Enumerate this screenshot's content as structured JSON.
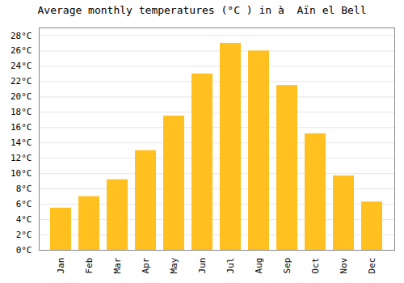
{
  "chart_data": {
    "type": "bar",
    "title": "Average monthly temperatures (°C ) in à  Aïn el Bell",
    "categories": [
      "Jan",
      "Feb",
      "Mar",
      "Apr",
      "May",
      "Jun",
      "Jul",
      "Aug",
      "Sep",
      "Oct",
      "Nov",
      "Dec"
    ],
    "values": [
      5.5,
      7.0,
      9.2,
      13.0,
      17.5,
      23.0,
      27.0,
      26.0,
      21.5,
      15.2,
      9.7,
      6.3
    ],
    "color": "#FFC020",
    "ylim": [
      0,
      29
    ],
    "yticks": [
      {
        "value": 0,
        "label": "0°C"
      },
      {
        "value": 2,
        "label": "2°C"
      },
      {
        "value": 4,
        "label": "4°C"
      },
      {
        "value": 6,
        "label": "6°C"
      },
      {
        "value": 8,
        "label": "8°C"
      },
      {
        "value": 10,
        "label": "10°C"
      },
      {
        "value": 12,
        "label": "12°C"
      },
      {
        "value": 14,
        "label": "14°C"
      },
      {
        "value": 16,
        "label": "16°C"
      },
      {
        "value": 18,
        "label": "18°C"
      },
      {
        "value": 20,
        "label": "20°C"
      },
      {
        "value": 22,
        "label": "22°C"
      },
      {
        "value": 24,
        "label": "24°C"
      },
      {
        "value": 26,
        "label": "26°C"
      },
      {
        "value": 28,
        "label": "28°C"
      }
    ],
    "grid": true
  }
}
